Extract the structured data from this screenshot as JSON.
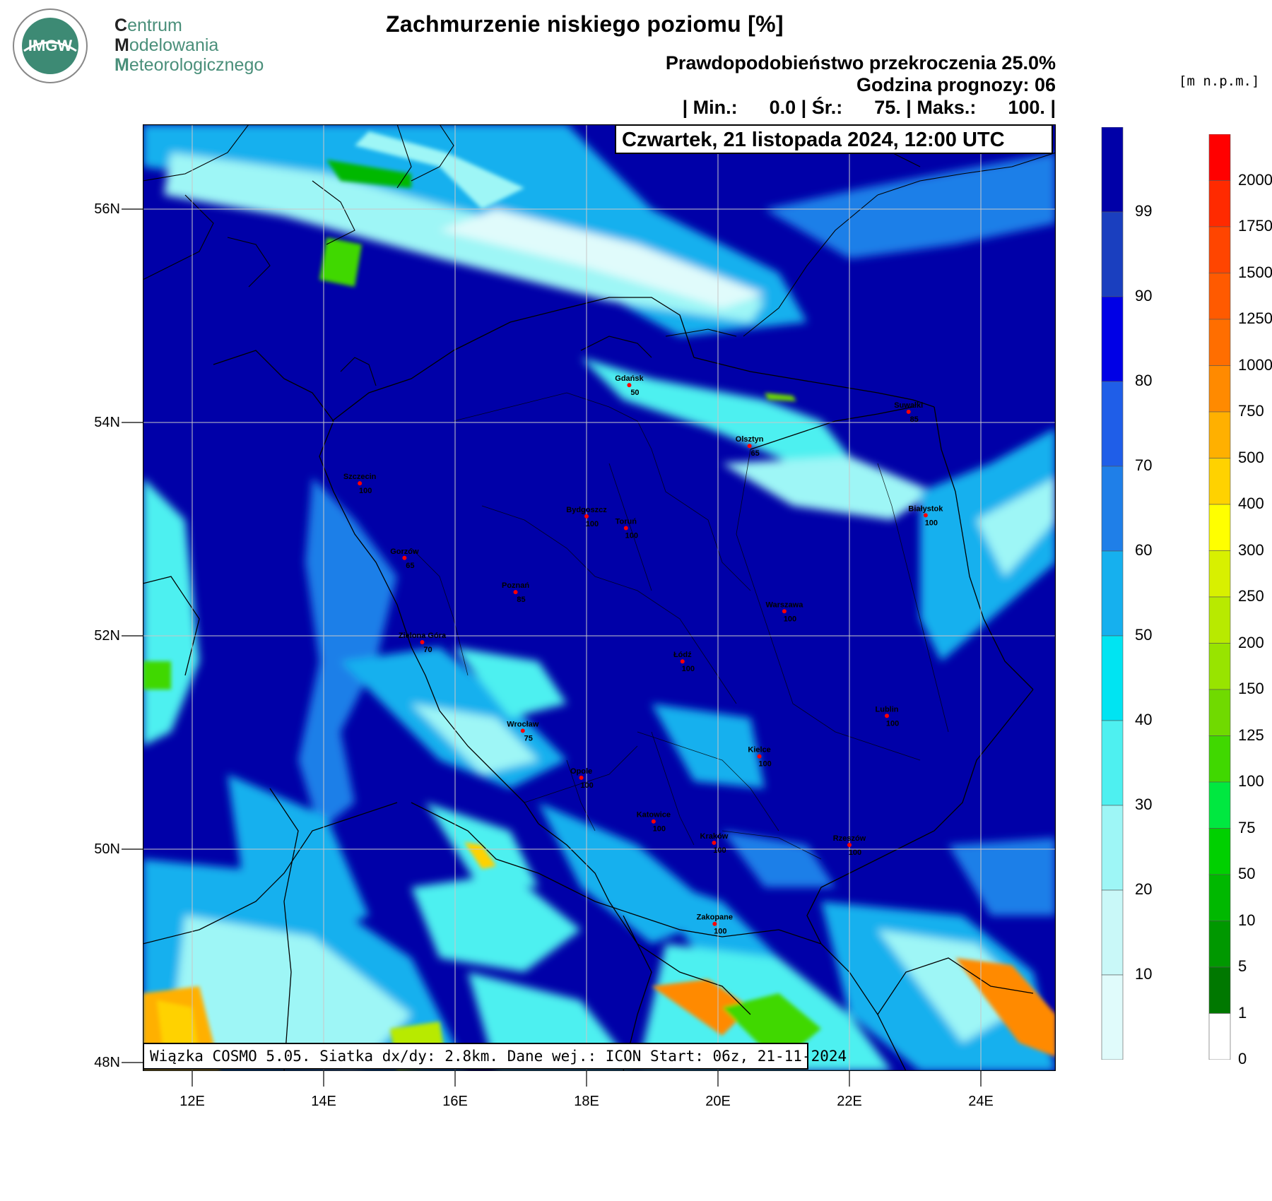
{
  "logo": {
    "seal_text": "IMGW",
    "org_lines": [
      {
        "initial": "C",
        "rest": "entrum"
      },
      {
        "initial": "M",
        "rest": "odelowania"
      },
      {
        "initial": "M",
        "rest": "eteorologicznego"
      }
    ]
  },
  "title": "Zachmurzenie niskiego poziomu [%]",
  "subtitle": "Prawdopodobieństwo przekroczenia 25.0%",
  "forecast_hour": "Godzina prognozy: 06",
  "stats": "| Min.:      0.0 | Śr.:      75. | Maks.:      100. |",
  "date": "Czwartek, 21 listopada 2024, 12:00 UTC",
  "model_info": "Wiązka COSMO 5.05. Siatka dx/dy: 2.8km. Dane wej.: ICON Start: 06z, 21-11-2024",
  "terrain_unit": "[m n.p.m.]",
  "axes": {
    "lat_labels": [
      "56N",
      "54N",
      "52N",
      "50N",
      "48N"
    ],
    "lon_labels": [
      "12E",
      "14E",
      "16E",
      "18E",
      "20E",
      "22E",
      "24E"
    ]
  },
  "cloud_scale": {
    "labels": [
      "99",
      "90",
      "80",
      "70",
      "60",
      "50",
      "40",
      "30",
      "20",
      "10"
    ],
    "colors": [
      "#0000a8",
      "#1a3fbf",
      "#0000e6",
      "#1f5ee8",
      "#1f7fe8",
      "#16b0ee",
      "#00e4f2",
      "#4ef0f0",
      "#9ef6f6",
      "#c9f8f8",
      "#e0fbfb"
    ]
  },
  "terrain_scale": {
    "labels": [
      "2000",
      "1750",
      "1500",
      "1250",
      "1000",
      "750",
      "500",
      "400",
      "300",
      "250",
      "200",
      "150",
      "125",
      "100",
      "75",
      "50",
      "10",
      "5",
      "1",
      "0"
    ],
    "colors": [
      "#ff0000",
      "#ff2a00",
      "#ff4500",
      "#ff5a00",
      "#ff6e00",
      "#ff8a00",
      "#ffb000",
      "#ffd200",
      "#ffff00",
      "#d8f000",
      "#b8ea00",
      "#98e400",
      "#70da00",
      "#40d800",
      "#00e840",
      "#00d000",
      "#00b800",
      "#009800",
      "#007800",
      "#ffffff"
    ]
  },
  "cities": [
    {
      "name": "Gdańsk",
      "value": "50",
      "lon": 18.65,
      "lat": 54.35
    },
    {
      "name": "Suwałki",
      "value": "85",
      "lon": 22.9,
      "lat": 54.1
    },
    {
      "name": "Olsztyn",
      "value": "65",
      "lon": 20.48,
      "lat": 53.78
    },
    {
      "name": "Szczecin",
      "value": "100",
      "lon": 14.55,
      "lat": 53.43
    },
    {
      "name": "Bydgoszcz",
      "value": "100",
      "lon": 18.0,
      "lat": 53.12
    },
    {
      "name": "Toruń",
      "value": "100",
      "lon": 18.6,
      "lat": 53.01
    },
    {
      "name": "Białystok",
      "value": "100",
      "lon": 23.16,
      "lat": 53.13
    },
    {
      "name": "Gorzów",
      "value": "65",
      "lon": 15.23,
      "lat": 52.73
    },
    {
      "name": "Poznań",
      "value": "85",
      "lon": 16.92,
      "lat": 52.41
    },
    {
      "name": "Warszawa",
      "value": "100",
      "lon": 21.01,
      "lat": 52.23
    },
    {
      "name": "Zielona Góra",
      "value": "70",
      "lon": 15.5,
      "lat": 51.94
    },
    {
      "name": "Łódź",
      "value": "100",
      "lon": 19.46,
      "lat": 51.76
    },
    {
      "name": "Lublin",
      "value": "100",
      "lon": 22.57,
      "lat": 51.25
    },
    {
      "name": "Wrocław",
      "value": "75",
      "lon": 17.03,
      "lat": 51.11
    },
    {
      "name": "Kielce",
      "value": "100",
      "lon": 20.63,
      "lat": 50.87
    },
    {
      "name": "Opole",
      "value": "100",
      "lon": 17.92,
      "lat": 50.67
    },
    {
      "name": "Katowice",
      "value": "100",
      "lon": 19.02,
      "lat": 50.26
    },
    {
      "name": "Kraków",
      "value": "100",
      "lon": 19.94,
      "lat": 50.06
    },
    {
      "name": "Rzeszów",
      "value": "100",
      "lon": 22.0,
      "lat": 50.04
    },
    {
      "name": "Zakopane",
      "value": "100",
      "lon": 19.95,
      "lat": 49.3
    }
  ]
}
